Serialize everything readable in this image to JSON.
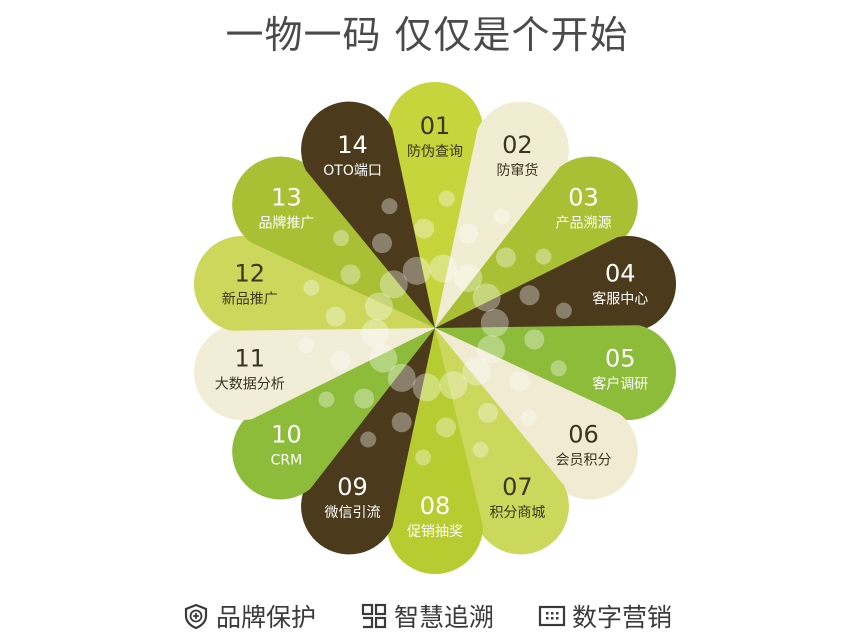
{
  "title": "一物一码 仅仅是个开始",
  "petals": [
    {
      "num": "01",
      "label": "防伪查询",
      "color": "#c6d53c",
      "text": "#3b3520"
    },
    {
      "num": "02",
      "label": "防窜货",
      "color": "#f1edd2",
      "text": "#3b3520"
    },
    {
      "num": "03",
      "label": "产品溯源",
      "color": "#a9c034",
      "text": "#ffffff"
    },
    {
      "num": "04",
      "label": "客服中心",
      "color": "#4b3b1c",
      "text": "#ffffff"
    },
    {
      "num": "05",
      "label": "客户调研",
      "color": "#8dbc3b",
      "text": "#ffffff"
    },
    {
      "num": "06",
      "label": "会员积分",
      "color": "#f0ebd2",
      "text": "#3b3520"
    },
    {
      "num": "07",
      "label": "积分商城",
      "color": "#cbd85c",
      "text": "#3b3520"
    },
    {
      "num": "08",
      "label": "促销抽奖",
      "color": "#b7cc31",
      "text": "#ffffff"
    },
    {
      "num": "09",
      "label": "微信引流",
      "color": "#4b3b1c",
      "text": "#ffffff"
    },
    {
      "num": "10",
      "label": "CRM",
      "color": "#8dbc3b",
      "text": "#ffffff"
    },
    {
      "num": "11",
      "label": "大数据分析",
      "color": "#f1edd6",
      "text": "#3b3520"
    },
    {
      "num": "12",
      "label": "新品推广",
      "color": "#ccd75c",
      "text": "#3b3520"
    },
    {
      "num": "13",
      "label": "品牌推广",
      "color": "#a9c034",
      "text": "#ffffff"
    },
    {
      "num": "14",
      "label": "OTO端口",
      "color": "#4b3b1c",
      "text": "#ffffff"
    }
  ],
  "footer": [
    {
      "icon": "shield-plus-icon",
      "label": "品牌保护"
    },
    {
      "icon": "qr-code-icon",
      "label": "智慧追溯"
    },
    {
      "icon": "keypad-icon",
      "label": "数字营销"
    }
  ]
}
